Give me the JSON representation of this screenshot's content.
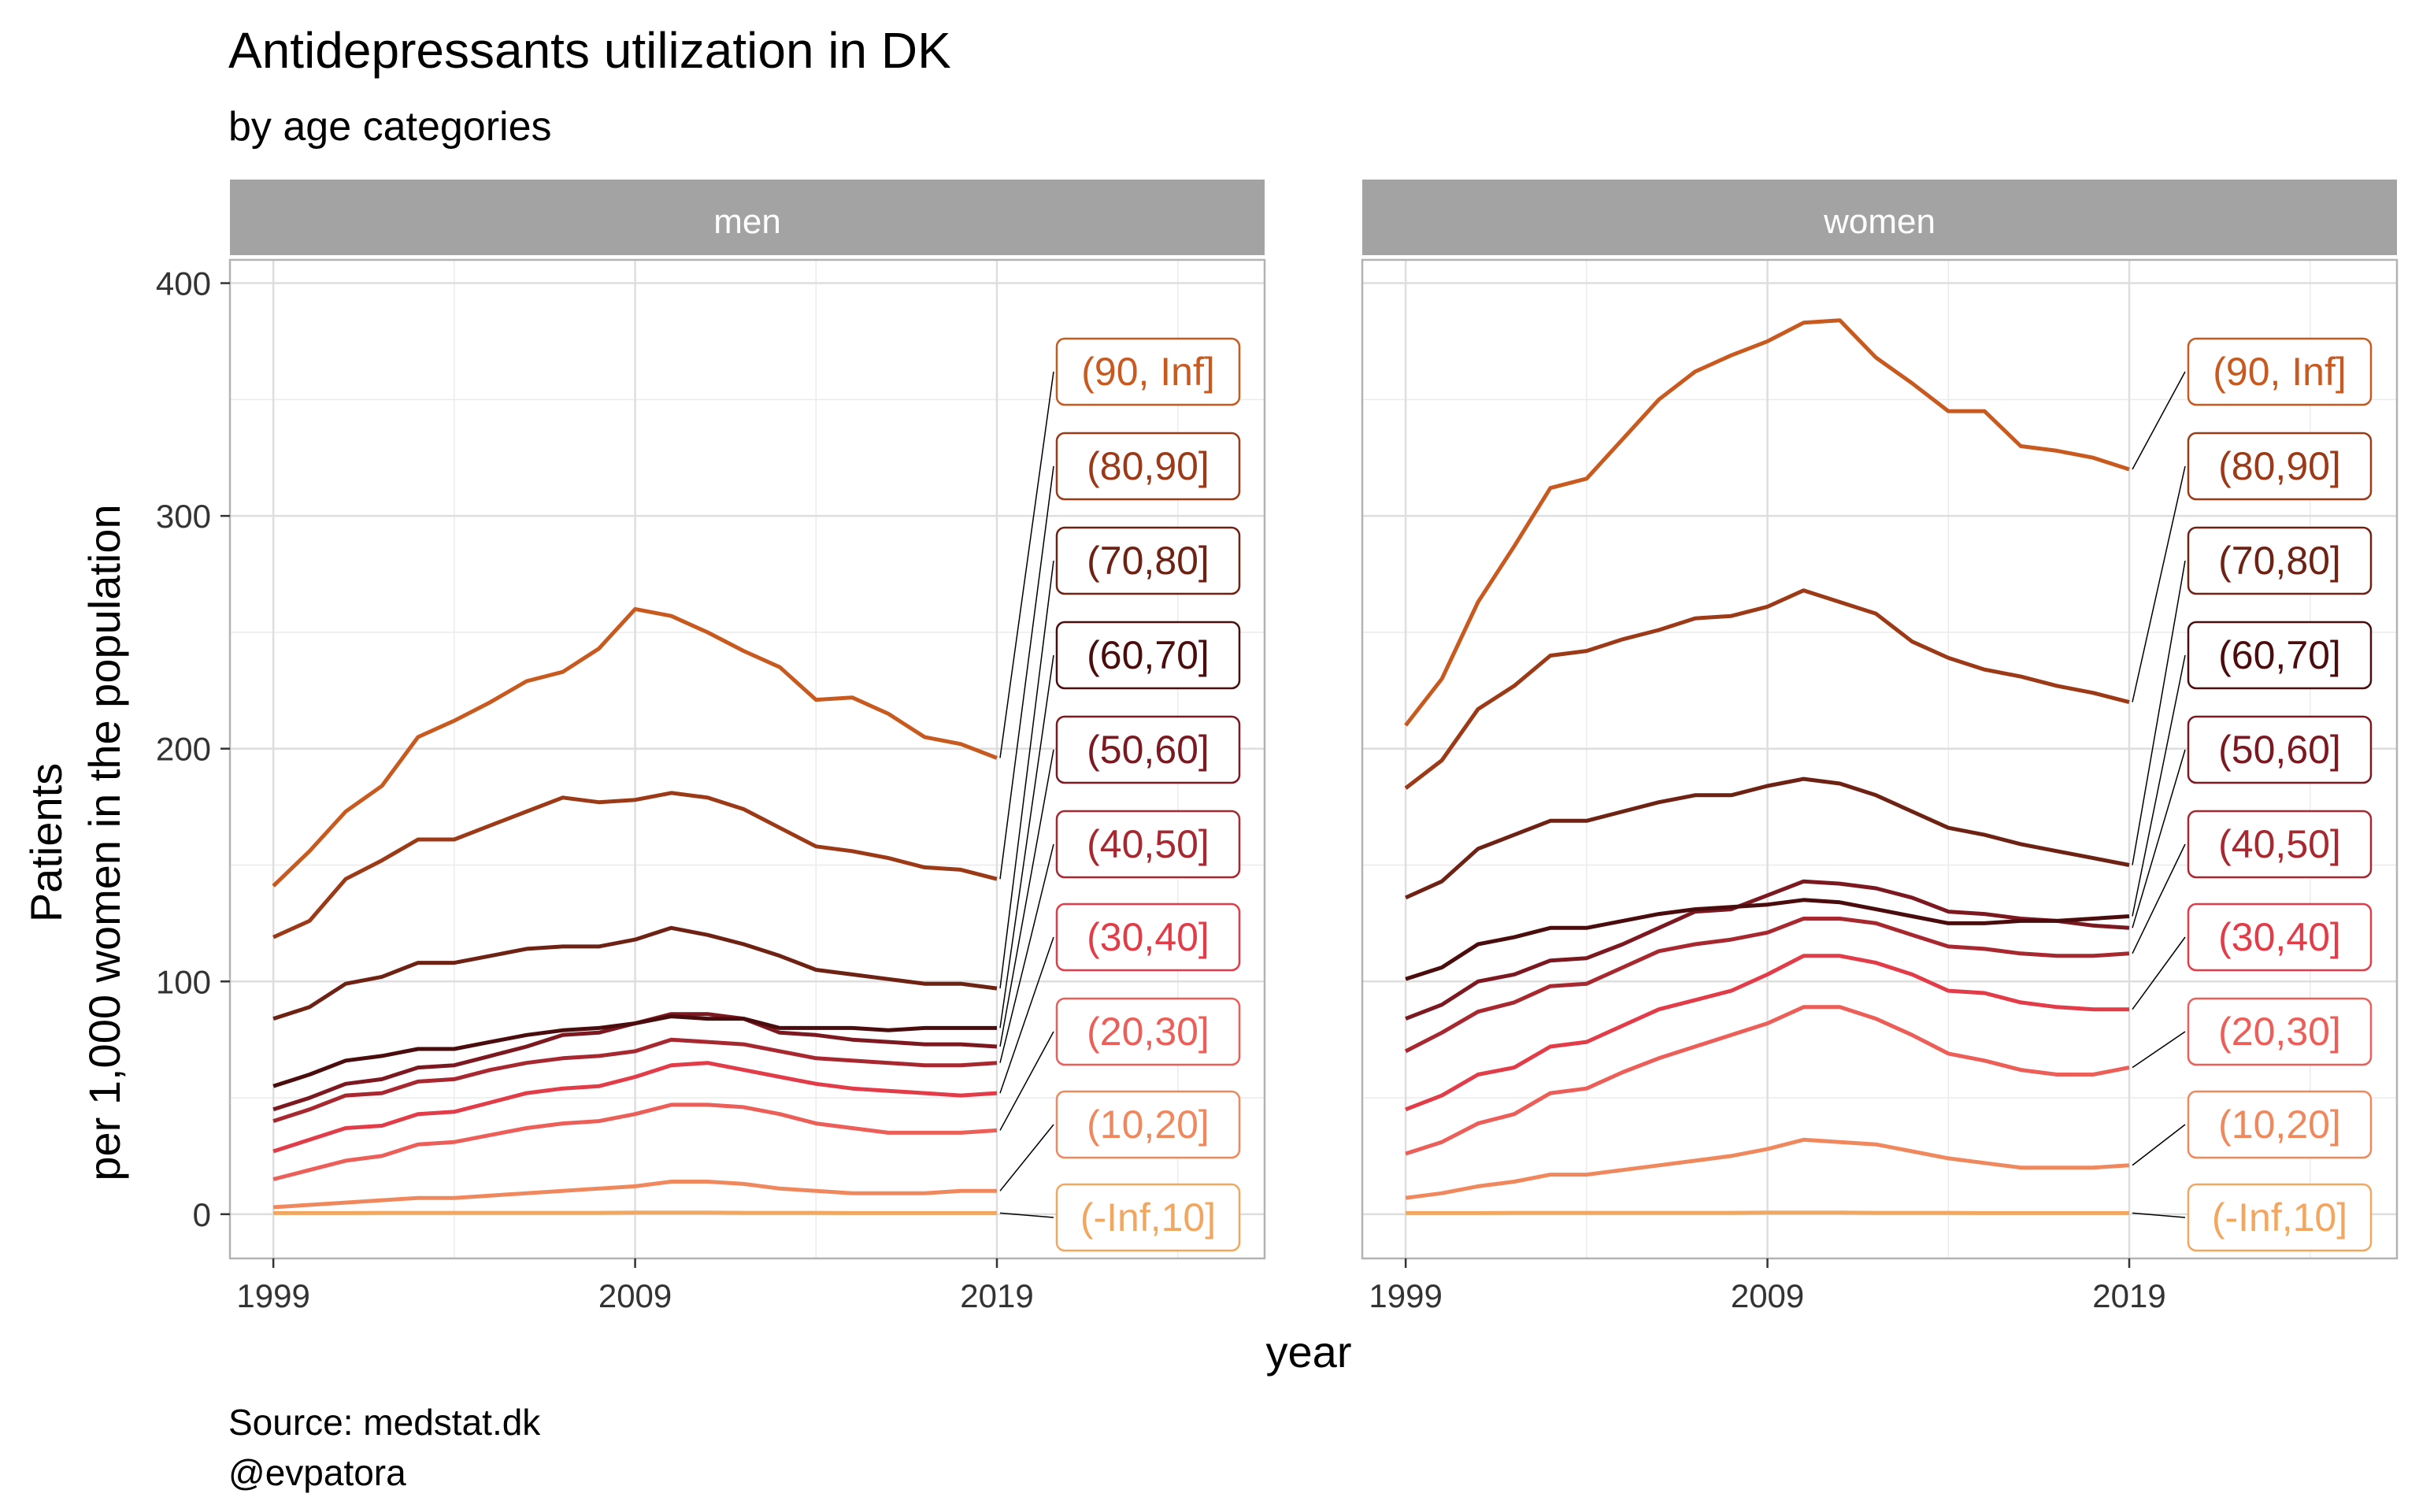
{
  "chart_data": {
    "type": "line",
    "title": "Antidepressants utilization in DK",
    "subtitle": "by age categories",
    "xlabel": "year",
    "ylabel_line1": "Patients",
    "ylabel_line2": "per 1,000 women in the population",
    "caption_line1": "Source: medstat.dk",
    "caption_line2": "@evpatora",
    "x": [
      1999,
      2000,
      2001,
      2002,
      2003,
      2004,
      2005,
      2006,
      2007,
      2008,
      2009,
      2010,
      2011,
      2012,
      2013,
      2014,
      2015,
      2016,
      2017,
      2018,
      2019
    ],
    "xlim": [
      1997.8,
      2026.4
    ],
    "ylim": [
      -19,
      410
    ],
    "x_ticks": [
      1999,
      2009,
      2019
    ],
    "y_ticks": [
      0,
      100,
      200,
      300,
      400
    ],
    "grid": true,
    "panels": [
      {
        "name": "men",
        "series": [
          {
            "name": "(90, Inf]",
            "color": "#C85A20",
            "values": [
              141,
              156,
              173,
              184,
              205,
              212,
              220,
              229,
              233,
              243,
              260,
              257,
              250,
              242,
              235,
              221,
              222,
              215,
              205,
              202,
              196
            ]
          },
          {
            "name": "(80,90]",
            "color": "#9C3A18",
            "values": [
              119,
              126,
              144,
              152,
              161,
              161,
              167,
              173,
              179,
              177,
              178,
              181,
              179,
              174,
              166,
              158,
              156,
              153,
              149,
              148,
              144
            ]
          },
          {
            "name": "(70,80]",
            "color": "#6E2214",
            "values": [
              84,
              89,
              99,
              102,
              108,
              108,
              111,
              114,
              115,
              115,
              118,
              123,
              120,
              116,
              111,
              105,
              103,
              101,
              99,
              99,
              97
            ]
          },
          {
            "name": "(60,70]",
            "color": "#4A0C0C",
            "values": [
              55,
              60,
              66,
              68,
              71,
              71,
              74,
              77,
              79,
              80,
              82,
              85,
              84,
              84,
              80,
              80,
              80,
              79,
              80,
              80,
              80
            ]
          },
          {
            "name": "(50,60]",
            "color": "#7C1820",
            "values": [
              45,
              50,
              56,
              58,
              63,
              64,
              68,
              72,
              77,
              78,
              82,
              86,
              86,
              84,
              78,
              77,
              75,
              74,
              73,
              73,
              72
            ]
          },
          {
            "name": "(40,50]",
            "color": "#A82830",
            "values": [
              40,
              45,
              51,
              52,
              57,
              58,
              62,
              65,
              67,
              68,
              70,
              75,
              74,
              73,
              70,
              67,
              66,
              65,
              64,
              64,
              65
            ]
          },
          {
            "name": "(30,40]",
            "color": "#E23C48",
            "values": [
              27,
              32,
              37,
              38,
              43,
              44,
              48,
              52,
              54,
              55,
              59,
              64,
              65,
              62,
              59,
              56,
              54,
              53,
              52,
              51,
              52
            ]
          },
          {
            "name": "(20,30]",
            "color": "#EC5E58",
            "values": [
              15,
              19,
              23,
              25,
              30,
              31,
              34,
              37,
              39,
              40,
              43,
              47,
              47,
              46,
              43,
              39,
              37,
              35,
              35,
              35,
              36
            ]
          },
          {
            "name": "(10,20]",
            "color": "#F0885E",
            "values": [
              3,
              4,
              5,
              6,
              7,
              7,
              8,
              9,
              10,
              11,
              12,
              14,
              14,
              13,
              11,
              10,
              9,
              9,
              9,
              10,
              10
            ]
          },
          {
            "name": "(-Inf,10]",
            "color": "#F2A760",
            "values": [
              0.5,
              0.5,
              0.5,
              0.6,
              0.6,
              0.6,
              0.6,
              0.6,
              0.6,
              0.6,
              0.7,
              0.7,
              0.7,
              0.6,
              0.6,
              0.6,
              0.5,
              0.5,
              0.5,
              0.5,
              0.5
            ]
          }
        ]
      },
      {
        "name": "women",
        "series": [
          {
            "name": "(90, Inf]",
            "color": "#C85A20",
            "values": [
              210,
              230,
              263,
              287,
              312,
              316,
              333,
              350,
              362,
              369,
              375,
              383,
              384,
              368,
              357,
              345,
              345,
              330,
              328,
              325,
              320
            ]
          },
          {
            "name": "(80,90]",
            "color": "#9C3A18",
            "values": [
              183,
              195,
              217,
              227,
              240,
              242,
              247,
              251,
              256,
              257,
              261,
              268,
              263,
              258,
              246,
              239,
              234,
              231,
              227,
              224,
              220
            ]
          },
          {
            "name": "(70,80]",
            "color": "#6E2214",
            "values": [
              136,
              143,
              157,
              163,
              169,
              169,
              173,
              177,
              180,
              180,
              184,
              187,
              185,
              180,
              173,
              166,
              163,
              159,
              156,
              153,
              150
            ]
          },
          {
            "name": "(60,70]",
            "color": "#4A0C0C",
            "values": [
              101,
              106,
              116,
              119,
              123,
              123,
              126,
              129,
              131,
              132,
              133,
              135,
              134,
              131,
              128,
              125,
              125,
              126,
              126,
              127,
              128
            ]
          },
          {
            "name": "(50,60]",
            "color": "#7C1820",
            "values": [
              84,
              90,
              100,
              103,
              109,
              110,
              116,
              123,
              130,
              131,
              137,
              143,
              142,
              140,
              136,
              130,
              129,
              127,
              126,
              124,
              123
            ]
          },
          {
            "name": "(40,50]",
            "color": "#A82830",
            "values": [
              70,
              78,
              87,
              91,
              98,
              99,
              106,
              113,
              116,
              118,
              121,
              127,
              127,
              125,
              120,
              115,
              114,
              112,
              111,
              111,
              112
            ]
          },
          {
            "name": "(30,40]",
            "color": "#E23C48",
            "values": [
              45,
              51,
              60,
              63,
              72,
              74,
              81,
              88,
              92,
              96,
              103,
              111,
              111,
              108,
              103,
              96,
              95,
              91,
              89,
              88,
              88
            ]
          },
          {
            "name": "(20,30]",
            "color": "#EC5E58",
            "values": [
              26,
              31,
              39,
              43,
              52,
              54,
              61,
              67,
              72,
              77,
              82,
              89,
              89,
              84,
              77,
              69,
              66,
              62,
              60,
              60,
              63
            ]
          },
          {
            "name": "(10,20]",
            "color": "#F0885E",
            "values": [
              7,
              9,
              12,
              14,
              17,
              17,
              19,
              21,
              23,
              25,
              28,
              32,
              31,
              30,
              27,
              24,
              22,
              20,
              20,
              20,
              21
            ]
          },
          {
            "name": "(-Inf,10]",
            "color": "#F2A760",
            "values": [
              0.5,
              0.5,
              0.5,
              0.6,
              0.6,
              0.6,
              0.6,
              0.6,
              0.6,
              0.6,
              0.7,
              0.7,
              0.7,
              0.6,
              0.6,
              0.6,
              0.5,
              0.5,
              0.5,
              0.5,
              0.5
            ]
          }
        ]
      }
    ]
  }
}
